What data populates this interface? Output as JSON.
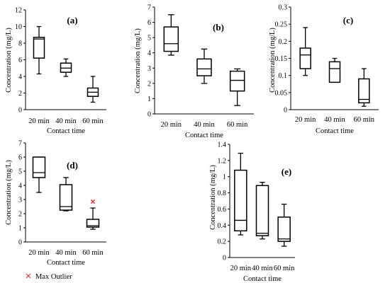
{
  "chart_data": [
    {
      "type": "box",
      "panel_label": "(a)",
      "ylabel": "Concentration (mg/L)",
      "xlabel": "Contact time",
      "ylim": [
        0,
        12
      ],
      "yticks": [
        "0",
        "2",
        "4",
        "6",
        "8",
        "10",
        "12"
      ],
      "categories": [
        "20 min",
        "40 min",
        "60 min"
      ],
      "boxes": [
        {
          "min": 4.3,
          "q1": 6.2,
          "median": 8.5,
          "q3": 8.7,
          "max": 10.0
        },
        {
          "min": 4.0,
          "q1": 4.5,
          "median": 5.0,
          "q3": 5.6,
          "max": 6.1
        },
        {
          "min": 0.9,
          "q1": 1.6,
          "median": 2.1,
          "q3": 2.6,
          "max": 4.0
        }
      ],
      "outliers": []
    },
    {
      "type": "box",
      "panel_label": "(b)",
      "ylabel": "Concentration (mg/L)",
      "xlabel": "Contact time",
      "ylim": [
        0,
        7
      ],
      "yticks": [
        "0",
        "1",
        "2",
        "3",
        "4",
        "5",
        "6",
        "7"
      ],
      "categories": [
        "20 min",
        "40 min",
        "60 min"
      ],
      "boxes": [
        {
          "min": 3.85,
          "q1": 4.1,
          "median": 4.6,
          "q3": 5.7,
          "max": 6.5
        },
        {
          "min": 2.0,
          "q1": 2.5,
          "median": 2.95,
          "q3": 3.6,
          "max": 4.25
        },
        {
          "min": 0.55,
          "q1": 1.5,
          "median": 2.2,
          "q3": 2.8,
          "max": 2.95
        }
      ],
      "outliers": []
    },
    {
      "type": "box",
      "panel_label": "(c)",
      "ylabel": "Concentration (mg/L)",
      "xlabel": "Contact time",
      "ylim": [
        0,
        0.3
      ],
      "yticks": [
        "0",
        "0.05",
        "0.1",
        "0.15",
        "0.2",
        "0.25",
        "0.3"
      ],
      "categories": [
        "20 min",
        "40 min",
        "60 min"
      ],
      "boxes": [
        {
          "min": 0.1,
          "q1": 0.12,
          "median": 0.16,
          "q3": 0.18,
          "max": 0.24
        },
        {
          "min": 0.08,
          "q1": 0.08,
          "median": 0.12,
          "q3": 0.14,
          "max": 0.15
        },
        {
          "min": 0.01,
          "q1": 0.02,
          "median": 0.03,
          "q3": 0.09,
          "max": 0.12
        }
      ],
      "outliers": []
    },
    {
      "type": "box",
      "panel_label": "(d)",
      "ylabel": "Concentration (mg/L)",
      "xlabel": "Contact time",
      "ylim": [
        0,
        7
      ],
      "yticks": [
        "0",
        "1",
        "2",
        "3",
        "4",
        "5",
        "6",
        "7"
      ],
      "categories": [
        "20 min",
        "40 min",
        "60 min"
      ],
      "boxes": [
        {
          "min": 3.5,
          "q1": 4.55,
          "median": 4.9,
          "q3": 6.0,
          "max": 6.0
        },
        {
          "min": 2.2,
          "q1": 2.25,
          "median": 2.5,
          "q3": 4.05,
          "max": 4.55
        },
        {
          "min": 0.9,
          "q1": 1.05,
          "median": 1.15,
          "q3": 1.6,
          "max": 2.4
        }
      ],
      "outliers": [
        {
          "category": "60 min",
          "value": 2.85
        }
      ],
      "legend": {
        "marker_label": "Max Outlier",
        "color": "#e8262e"
      }
    },
    {
      "type": "box",
      "panel_label": "(e)",
      "ylabel": "Concentration (mg/L)",
      "xlabel": "Contact time",
      "ylim": [
        0,
        1.4
      ],
      "yticks": [
        "0",
        "0.2",
        "0.4",
        "0.6",
        "0.8",
        "1",
        "1.2",
        "1.4"
      ],
      "categories": [
        "20 min",
        "40 min",
        "60 min"
      ],
      "boxes": [
        {
          "min": 0.28,
          "q1": 0.33,
          "median": 0.46,
          "q3": 1.08,
          "max": 1.29
        },
        {
          "min": 0.23,
          "q1": 0.27,
          "median": 0.3,
          "q3": 0.89,
          "max": 0.93
        },
        {
          "min": 0.14,
          "q1": 0.2,
          "median": 0.23,
          "q3": 0.5,
          "max": 0.66
        }
      ],
      "outliers": []
    }
  ]
}
